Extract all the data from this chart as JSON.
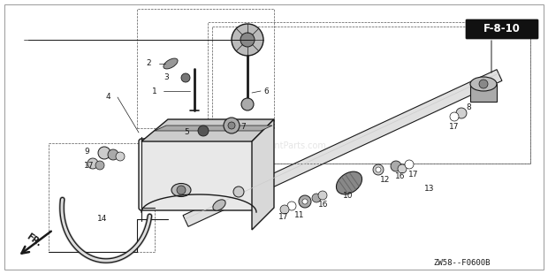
{
  "bg_color": "#ffffff",
  "title_ref": "F-8-10",
  "diagram_code": "ZW58--F0600B",
  "fr_label": "FR.",
  "text_color": "#1a1a1a",
  "line_color": "#1a1a1a",
  "label_fontsize": 6.5,
  "ref_fontsize": 8.5,
  "fig_width": 6.2,
  "fig_height": 3.1,
  "dpi": 100,
  "xlim": [
    0,
    620
  ],
  "ylim": [
    0,
    310
  ]
}
